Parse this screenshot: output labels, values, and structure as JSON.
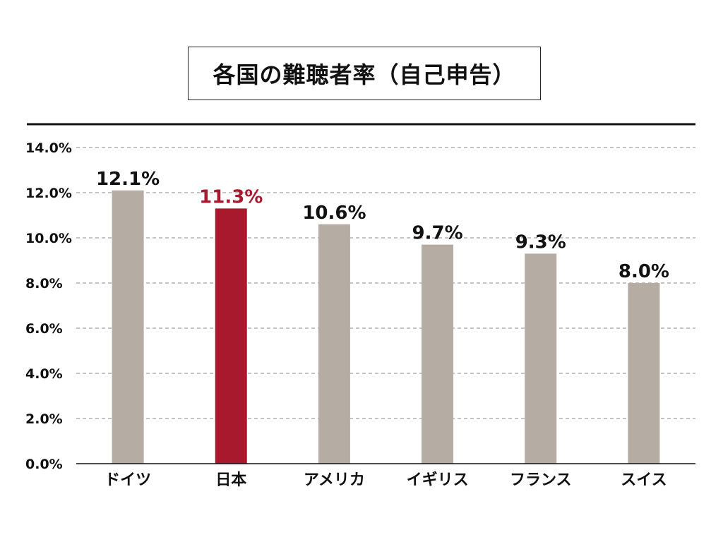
{
  "chart_data": {
    "type": "bar",
    "title": "各国の難聴者率（自己申告）",
    "xlabel": "",
    "ylabel": "",
    "categories": [
      "ドイツ",
      "日本",
      "アメリカ",
      "イギリス",
      "フランス",
      "スイス"
    ],
    "values": [
      12.1,
      11.3,
      10.6,
      9.7,
      9.3,
      8.0
    ],
    "data_labels": [
      "12.1%",
      "11.3%",
      "10.6%",
      "9.7%",
      "9.3%",
      "8.0%"
    ],
    "highlight_category": "日本",
    "ylim": [
      0,
      14
    ],
    "yticks": [
      0,
      2,
      4,
      6,
      8,
      10,
      12,
      14
    ],
    "ytick_labels": [
      "0.0%",
      "2.0%",
      "4.0%",
      "6.0%",
      "8.0%",
      "10.0%",
      "12.0%",
      "14.0%"
    ],
    "grid": true,
    "grid_style": "dashed",
    "legend": "none",
    "colors": {
      "bar": "#b5aca3",
      "highlight_bar": "#a8192e",
      "highlight_label": "#a8192e",
      "label": "#111111",
      "grid": "#888888",
      "axis": "#111111"
    }
  }
}
